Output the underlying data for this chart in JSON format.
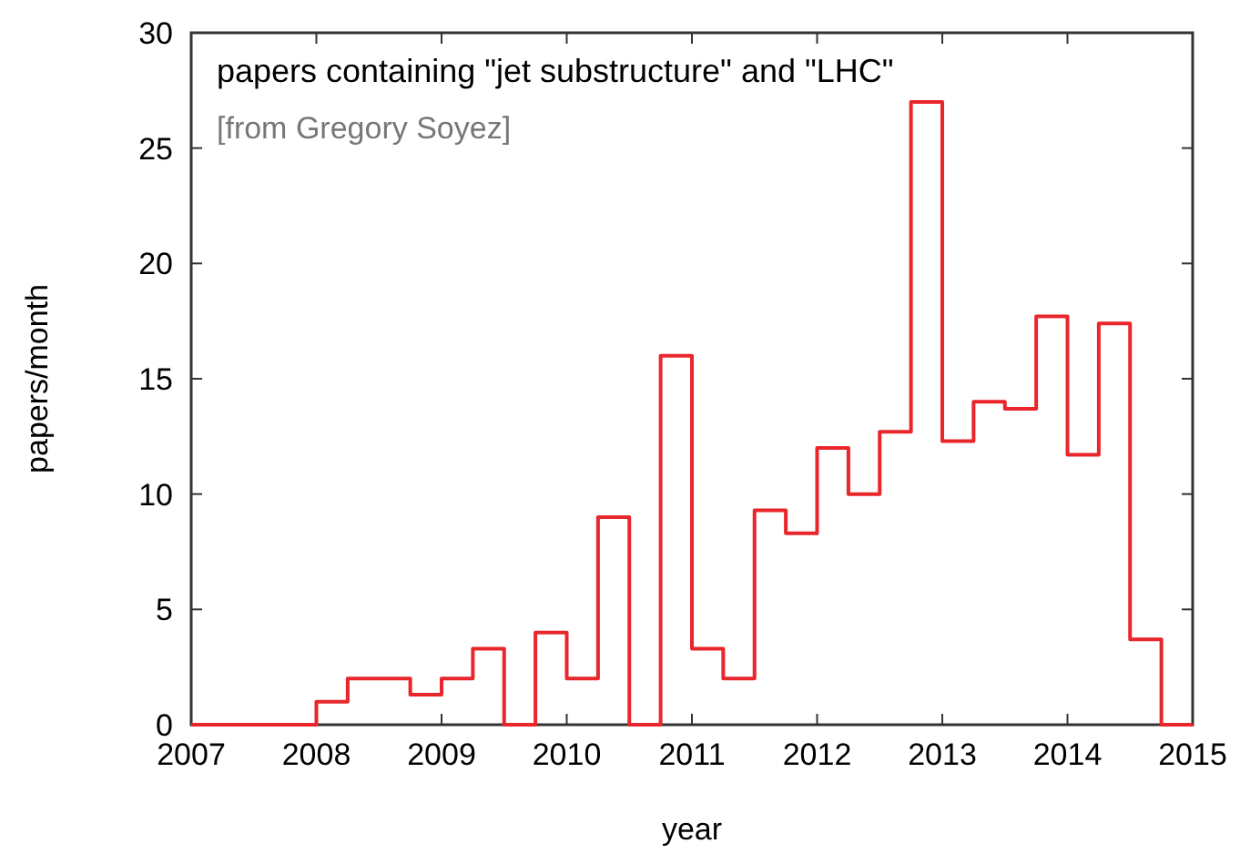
{
  "chart_data": {
    "type": "step",
    "title": "papers containing \"jet substructure\" and \"LHC\"",
    "annotations": [
      "[from Gregory Soyez]"
    ],
    "xlabel": "year",
    "ylabel": "papers/month",
    "x": [
      2007,
      2007.25,
      2007.5,
      2007.75,
      2008,
      2008.25,
      2008.5,
      2008.75,
      2009,
      2009.25,
      2009.5,
      2009.75,
      2010,
      2010.25,
      2010.5,
      2010.75,
      2011,
      2011.25,
      2011.5,
      2011.75,
      2012,
      2012.25,
      2012.5,
      2012.75,
      2013,
      2013.25,
      2013.5,
      2013.75,
      2014,
      2014.25,
      2014.5,
      2014.75,
      2015
    ],
    "values": [
      0,
      0,
      0,
      0,
      1,
      2,
      2,
      1.3,
      2,
      3.3,
      0,
      4,
      2,
      9,
      0,
      16,
      3.3,
      2,
      9.3,
      8.3,
      12,
      10,
      12.7,
      27,
      12.3,
      14,
      13.7,
      17.7,
      11.7,
      17.4,
      3.7,
      0,
      0
    ],
    "color": "#e8262b",
    "xlim": [
      2007,
      2015
    ],
    "ylim": [
      0,
      30
    ],
    "xticks": [
      2007,
      2008,
      2009,
      2010,
      2011,
      2012,
      2013,
      2014,
      2015
    ],
    "yticks": [
      0,
      5,
      10,
      15,
      20,
      25,
      30
    ],
    "grid": false
  }
}
